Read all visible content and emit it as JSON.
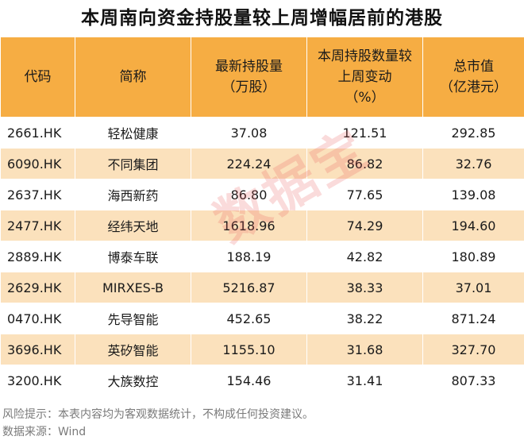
{
  "title": "本周南向资金持股量较上周增幅居前的港股",
  "table": {
    "headers": [
      [
        "代码"
      ],
      [
        "简称"
      ],
      [
        "最新持股量",
        "（万股）"
      ],
      [
        "本周持股数量较",
        "上周变动",
        "（%）"
      ],
      [
        "总市值",
        "（亿港元）"
      ]
    ],
    "rows": [
      [
        "2661.HK",
        "轻松健康",
        "37.08",
        "121.51",
        "292.85"
      ],
      [
        "6090.HK",
        "不同集团",
        "224.24",
        "86.82",
        "32.76"
      ],
      [
        "2637.HK",
        "海西新药",
        "86.80",
        "77.65",
        "139.08"
      ],
      [
        "2477.HK",
        "经纬天地",
        "1618.96",
        "74.29",
        "194.60"
      ],
      [
        "2889.HK",
        "博泰车联",
        "188.19",
        "42.82",
        "180.89"
      ],
      [
        "2629.HK",
        "MIRXES-B",
        "5216.87",
        "38.33",
        "37.01"
      ],
      [
        "0470.HK",
        "先导智能",
        "452.65",
        "38.22",
        "871.24"
      ],
      [
        "3696.HK",
        "英矽智能",
        "1155.10",
        "31.68",
        "327.70"
      ],
      [
        "3200.HK",
        "大族数控",
        "154.46",
        "31.41",
        "807.33"
      ]
    ]
  },
  "footer": {
    "risk_note": "风险提示：本表内容均为客观数据统计，不构成任何投资建议。",
    "source": "数据来源：Wind"
  },
  "watermark": "数据宝",
  "colors": {
    "header_bg": "#f6ad43",
    "stripe_bg": "#fbe1bc",
    "watermark": "#e65a5a"
  }
}
